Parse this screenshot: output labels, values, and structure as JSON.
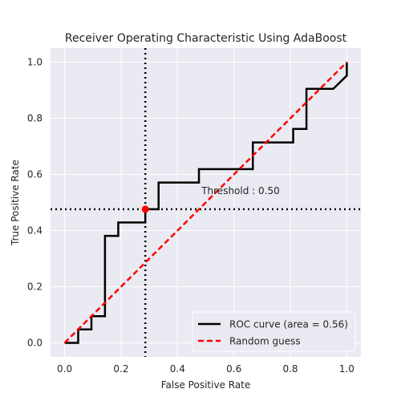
{
  "chart_data": {
    "type": "line",
    "title": "Receiver Operating Characteristic Using AdaBoost",
    "xlabel": "False Positive Rate",
    "ylabel": "True Positive Rate",
    "xlim": [
      -0.05,
      1.05
    ],
    "ylim": [
      -0.05,
      1.05
    ],
    "xticks": [
      0.0,
      0.2,
      0.4,
      0.6,
      0.8,
      1.0
    ],
    "yticks": [
      0.0,
      0.2,
      0.4,
      0.6,
      0.8,
      1.0
    ],
    "xtick_labels": [
      "0.0",
      "0.2",
      "0.4",
      "0.6",
      "0.8",
      "1.0"
    ],
    "ytick_labels": [
      "0.0",
      "0.2",
      "0.4",
      "0.6",
      "0.8",
      "1.0"
    ],
    "grid": true,
    "legend_position": "lower-right",
    "series": [
      {
        "name": "ROC curve (area = 0.56)",
        "color": "#000000",
        "style": "solid",
        "x": [
          0.0,
          0.048,
          0.048,
          0.095,
          0.095,
          0.143,
          0.143,
          0.19,
          0.19,
          0.286,
          0.286,
          0.333,
          0.333,
          0.476,
          0.476,
          0.667,
          0.667,
          0.81,
          0.81,
          0.857,
          0.857,
          0.952,
          1.0,
          1.0
        ],
        "y": [
          0.0,
          0.0,
          0.048,
          0.048,
          0.095,
          0.095,
          0.381,
          0.381,
          0.429,
          0.429,
          0.476,
          0.476,
          0.571,
          0.571,
          0.619,
          0.619,
          0.714,
          0.714,
          0.762,
          0.762,
          0.905,
          0.905,
          0.952,
          1.0
        ]
      },
      {
        "name": "Random guess",
        "color": "#ff0000",
        "style": "dashed",
        "x": [
          0.0,
          1.0
        ],
        "y": [
          0.0,
          1.0
        ]
      }
    ],
    "threshold": {
      "label": "Threshold : 0.50",
      "x": 0.286,
      "y": 0.476,
      "marker_color": "#ff0000"
    }
  }
}
